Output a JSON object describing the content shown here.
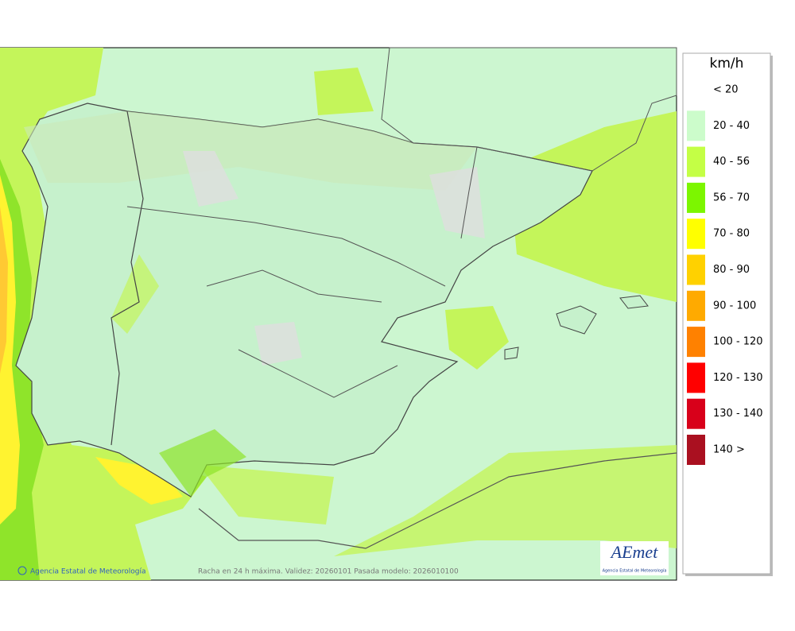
{
  "legend": {
    "title": "km/h",
    "items": [
      {
        "label": "< 20"
      },
      {
        "label": "20 - 40",
        "color": "#ccfccb"
      },
      {
        "label": "40 - 56",
        "color": "#c4ff45"
      },
      {
        "label": "56 - 70",
        "color": "#7cf600"
      },
      {
        "label": "70 - 80",
        "color": "#ffff00"
      },
      {
        "label": "80 - 90",
        "color": "#ffd100"
      },
      {
        "label": "90 - 100",
        "color": "#ffaa00"
      },
      {
        "label": "100 - 120",
        "color": "#ff8100"
      },
      {
        "label": "120 - 130",
        "color": "#ff0000"
      },
      {
        "label": "130 - 140",
        "color": "#d8001a"
      },
      {
        "label": "140 >",
        "color": "#aa1020"
      }
    ]
  },
  "footer": {
    "credit": "Agencia Estatal de Meteorología",
    "caption": "Racha en 24 h máxima. Validez: 20260101 Pasada modelo: 2026010100"
  },
  "logo": {
    "name": "AEmet",
    "subtitle": "Agencia Estatal de Meteorología"
  }
}
